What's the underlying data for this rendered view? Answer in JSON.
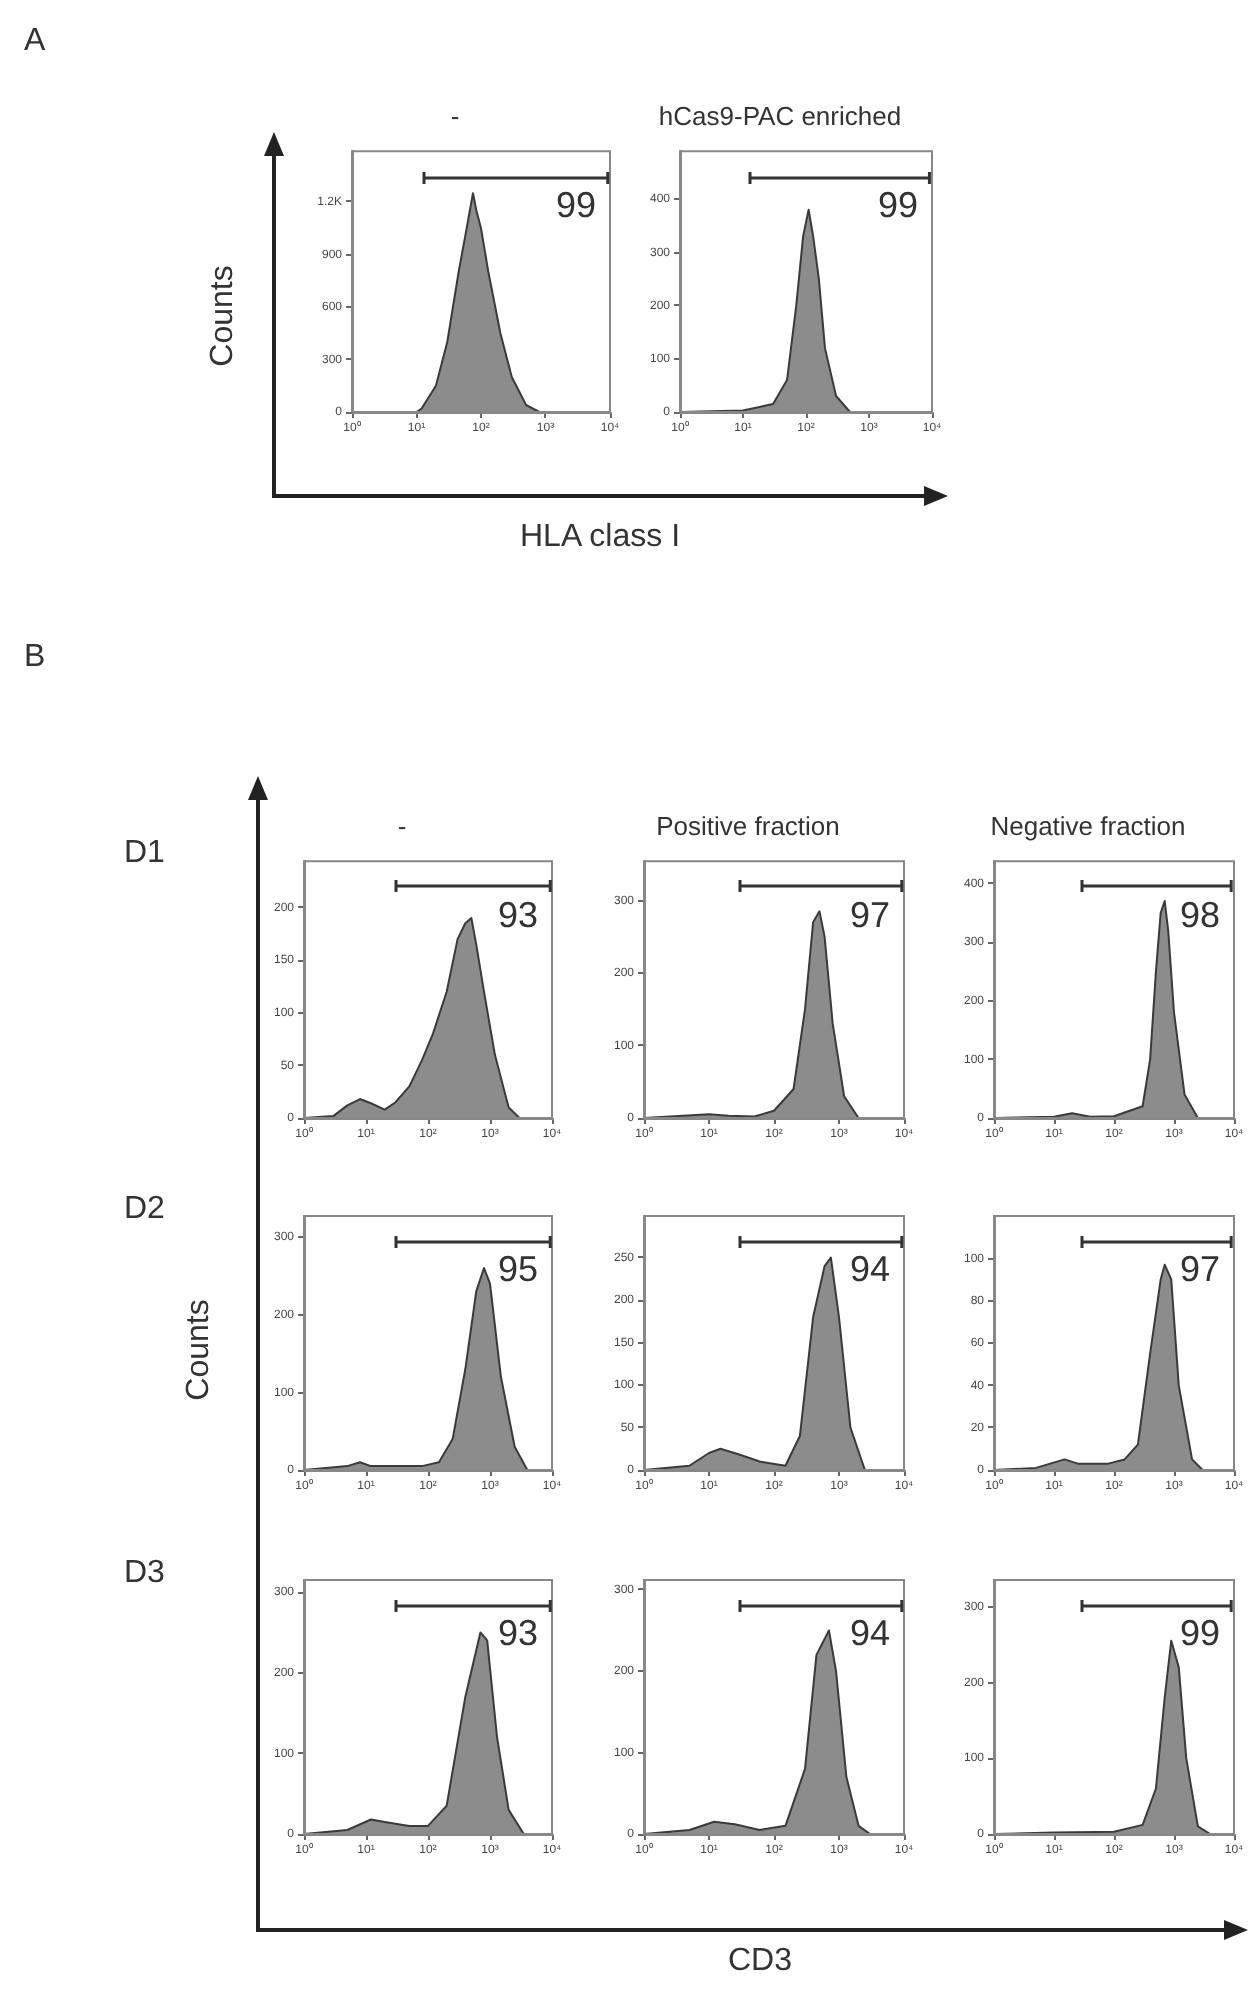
{
  "chart_data": [
    {
      "type": "other",
      "title": "A",
      "xlabel": "HLA class I",
      "ylabel": "Counts"
    },
    {
      "type": "area",
      "title": "-",
      "color": "#8c8c8c",
      "x": [
        1,
        10,
        12,
        20,
        30,
        45,
        60,
        75,
        85,
        100,
        130,
        200,
        300,
        500,
        800,
        10000
      ],
      "values": [
        0,
        0,
        20,
        150,
        400,
        800,
        1050,
        1250,
        1150,
        1050,
        800,
        450,
        200,
        40,
        0,
        0
      ],
      "xlim": [
        1,
        10000
      ],
      "xticks": [
        {
          "value": 1,
          "label": "10⁰"
        },
        {
          "value": 10,
          "label": "10¹"
        },
        {
          "value": 100,
          "label": "10²"
        },
        {
          "value": 1000,
          "label": "10³"
        },
        {
          "value": 10000,
          "label": "10⁴"
        }
      ],
      "ylim": [
        0,
        1490
      ],
      "yticks": [
        0,
        300,
        600,
        900,
        {
          "value": 1200,
          "label": "1.2K"
        }
      ],
      "log": "x",
      "annotations": [
        "99"
      ]
    },
    {
      "type": "area",
      "title": "hCas9-PAC enriched",
      "color": "#8c8c8c",
      "x": [
        1,
        10,
        30,
        50,
        70,
        90,
        110,
        130,
        160,
        200,
        300,
        500,
        10000
      ],
      "values": [
        0,
        3,
        15,
        60,
        200,
        330,
        380,
        330,
        250,
        120,
        30,
        0,
        0
      ],
      "xlim": [
        1,
        10000
      ],
      "xticks": [
        {
          "value": 1,
          "label": "10⁰"
        },
        {
          "value": 10,
          "label": "10¹"
        },
        {
          "value": 100,
          "label": "10²"
        },
        {
          "value": 1000,
          "label": "10³"
        },
        {
          "value": 10000,
          "label": "10⁴"
        }
      ],
      "ylim": [
        0,
        490
      ],
      "yticks": [
        0,
        100,
        200,
        300,
        400
      ],
      "log": "x",
      "annotations": [
        "99"
      ]
    },
    {
      "type": "other",
      "title": "B",
      "xlabel": "CD3",
      "ylabel": "Counts",
      "annotations": [
        "D1",
        "D2",
        "D3"
      ]
    },
    {
      "type": "area",
      "title": "-",
      "color": "#8c8c8c",
      "x": [
        1,
        3,
        5,
        8,
        12,
        20,
        30,
        50,
        80,
        120,
        200,
        300,
        400,
        500,
        600,
        800,
        1200,
        2000,
        3000,
        10000
      ],
      "values": [
        0,
        2,
        12,
        18,
        14,
        8,
        15,
        30,
        55,
        80,
        120,
        170,
        185,
        190,
        165,
        120,
        60,
        10,
        0,
        0
      ],
      "xlim": [
        1,
        10000
      ],
      "xticks": [
        {
          "value": 1,
          "label": "10⁰"
        },
        {
          "value": 10,
          "label": "10¹"
        },
        {
          "value": 100,
          "label": "10²"
        },
        {
          "value": 1000,
          "label": "10³"
        },
        {
          "value": 10000,
          "label": "10⁴"
        }
      ],
      "ylim": [
        0,
        244
      ],
      "yticks": [
        0,
        50,
        100,
        150,
        200
      ],
      "log": "x",
      "annotations": [
        "93"
      ]
    },
    {
      "type": "area",
      "title": "Positive fraction",
      "color": "#8c8c8c",
      "x": [
        1,
        10,
        20,
        50,
        100,
        200,
        300,
        400,
        500,
        600,
        800,
        1200,
        2000,
        10000
      ],
      "values": [
        0,
        5,
        3,
        2,
        10,
        40,
        150,
        270,
        285,
        250,
        130,
        30,
        0,
        0
      ],
      "xlim": [
        1,
        10000
      ],
      "xticks": [
        {
          "value": 1,
          "label": "10⁰"
        },
        {
          "value": 10,
          "label": "10¹"
        },
        {
          "value": 100,
          "label": "10²"
        },
        {
          "value": 1000,
          "label": "10³"
        },
        {
          "value": 10000,
          "label": "10⁴"
        }
      ],
      "ylim": [
        0,
        354
      ],
      "yticks": [
        0,
        100,
        200,
        300
      ],
      "log": "x",
      "annotations": [
        "97"
      ]
    },
    {
      "type": "area",
      "title": "Negative fraction",
      "color": "#8c8c8c",
      "x": [
        1,
        10,
        20,
        40,
        100,
        300,
        400,
        500,
        600,
        700,
        800,
        1000,
        1500,
        2500,
        10000
      ],
      "values": [
        0,
        2,
        8,
        2,
        3,
        20,
        100,
        250,
        350,
        370,
        320,
        180,
        40,
        0,
        0
      ],
      "xlim": [
        1,
        10000
      ],
      "xticks": [
        {
          "value": 1,
          "label": "10⁰"
        },
        {
          "value": 10,
          "label": "10¹"
        },
        {
          "value": 100,
          "label": "10²"
        },
        {
          "value": 1000,
          "label": "10³"
        },
        {
          "value": 10000,
          "label": "10⁴"
        }
      ],
      "ylim": [
        0,
        438
      ],
      "yticks": [
        0,
        100,
        200,
        300,
        400
      ],
      "log": "x",
      "annotations": [
        "98"
      ]
    },
    {
      "type": "area",
      "color": "#8c8c8c",
      "x": [
        1,
        5,
        8,
        12,
        30,
        80,
        150,
        250,
        400,
        600,
        800,
        1000,
        1500,
        2500,
        4000,
        10000
      ],
      "values": [
        0,
        5,
        10,
        5,
        5,
        5,
        10,
        40,
        130,
        230,
        260,
        240,
        120,
        30,
        0,
        0
      ],
      "xlim": [
        1,
        10000
      ],
      "xticks": [
        {
          "value": 1,
          "label": "10⁰"
        },
        {
          "value": 10,
          "label": "10¹"
        },
        {
          "value": 100,
          "label": "10²"
        },
        {
          "value": 1000,
          "label": "10³"
        },
        {
          "value": 10000,
          "label": "10⁴"
        }
      ],
      "ylim": [
        0,
        327
      ],
      "yticks": [
        0,
        100,
        200,
        300
      ],
      "log": "x",
      "annotations": [
        "95"
      ]
    },
    {
      "type": "area",
      "color": "#8c8c8c",
      "x": [
        1,
        5,
        10,
        15,
        30,
        60,
        150,
        250,
        400,
        600,
        750,
        1000,
        1500,
        2500,
        10000
      ],
      "values": [
        0,
        5,
        20,
        25,
        18,
        10,
        5,
        40,
        180,
        240,
        250,
        180,
        50,
        0,
        0
      ],
      "xlim": [
        1,
        10000
      ],
      "xticks": [
        {
          "value": 1,
          "label": "10⁰"
        },
        {
          "value": 10,
          "label": "10¹"
        },
        {
          "value": 100,
          "label": "10²"
        },
        {
          "value": 1000,
          "label": "10³"
        },
        {
          "value": 10000,
          "label": "10⁴"
        }
      ],
      "ylim": [
        0,
        299
      ],
      "yticks": [
        0,
        50,
        100,
        150,
        200,
        250
      ],
      "log": "x",
      "annotations": [
        "94"
      ]
    },
    {
      "type": "area",
      "color": "#8c8c8c",
      "x": [
        1,
        5,
        15,
        25,
        80,
        150,
        250,
        400,
        600,
        700,
        900,
        1200,
        2000,
        3000,
        10000
      ],
      "values": [
        0,
        1,
        5,
        3,
        3,
        5,
        12,
        55,
        90,
        97,
        90,
        40,
        5,
        0,
        0
      ],
      "xlim": [
        1,
        10000
      ],
      "xticks": [
        {
          "value": 1,
          "label": "10⁰"
        },
        {
          "value": 10,
          "label": "10¹"
        },
        {
          "value": 100,
          "label": "10²"
        },
        {
          "value": 1000,
          "label": "10³"
        },
        {
          "value": 10000,
          "label": "10⁴"
        }
      ],
      "ylim": [
        0,
        120
      ],
      "yticks": [
        0,
        20,
        40,
        60,
        80,
        100
      ],
      "log": "x",
      "annotations": [
        "97"
      ]
    },
    {
      "type": "area",
      "color": "#8c8c8c",
      "x": [
        1,
        5,
        12,
        20,
        50,
        100,
        200,
        400,
        700,
        900,
        1300,
        2000,
        3500,
        10000
      ],
      "values": [
        0,
        5,
        18,
        15,
        10,
        10,
        35,
        170,
        250,
        240,
        120,
        30,
        0,
        0
      ],
      "xlim": [
        1,
        10000
      ],
      "xticks": [
        {
          "value": 1,
          "label": "10⁰"
        },
        {
          "value": 10,
          "label": "10¹"
        },
        {
          "value": 100,
          "label": "10²"
        },
        {
          "value": 1000,
          "label": "10³"
        },
        {
          "value": 10000,
          "label": "10⁴"
        }
      ],
      "ylim": [
        0,
        315
      ],
      "yticks": [
        0,
        100,
        200,
        300
      ],
      "log": "x",
      "annotations": [
        "93"
      ]
    },
    {
      "type": "area",
      "color": "#8c8c8c",
      "x": [
        1,
        5,
        12,
        25,
        60,
        150,
        300,
        450,
        700,
        900,
        1300,
        2000,
        3000,
        10000
      ],
      "values": [
        0,
        5,
        15,
        12,
        5,
        10,
        80,
        220,
        250,
        200,
        70,
        10,
        0,
        0
      ],
      "xlim": [
        1,
        10000
      ],
      "xticks": [
        {
          "value": 1,
          "label": "10⁰"
        },
        {
          "value": 10,
          "label": "10¹"
        },
        {
          "value": 100,
          "label": "10²"
        },
        {
          "value": 1000,
          "label": "10³"
        },
        {
          "value": 10000,
          "label": "10⁴"
        }
      ],
      "ylim": [
        0,
        312
      ],
      "yticks": [
        0,
        100,
        200,
        300
      ],
      "log": "x",
      "annotations": [
        "94"
      ]
    },
    {
      "type": "area",
      "color": "#8c8c8c",
      "x": [
        1,
        10,
        100,
        300,
        500,
        700,
        900,
        1200,
        1600,
        2500,
        4000,
        10000
      ],
      "values": [
        0,
        2,
        3,
        12,
        60,
        180,
        255,
        220,
        100,
        10,
        0,
        0
      ],
      "xlim": [
        1,
        10000
      ],
      "xticks": [
        {
          "value": 1,
          "label": "10⁰"
        },
        {
          "value": 10,
          "label": "10¹"
        },
        {
          "value": 100,
          "label": "10²"
        },
        {
          "value": 1000,
          "label": "10³"
        },
        {
          "value": 10000,
          "label": "10⁴"
        }
      ],
      "ylim": [
        0,
        335
      ],
      "yticks": [
        0,
        100,
        200,
        300
      ],
      "log": "x",
      "annotations": [
        "99"
      ]
    }
  ]
}
